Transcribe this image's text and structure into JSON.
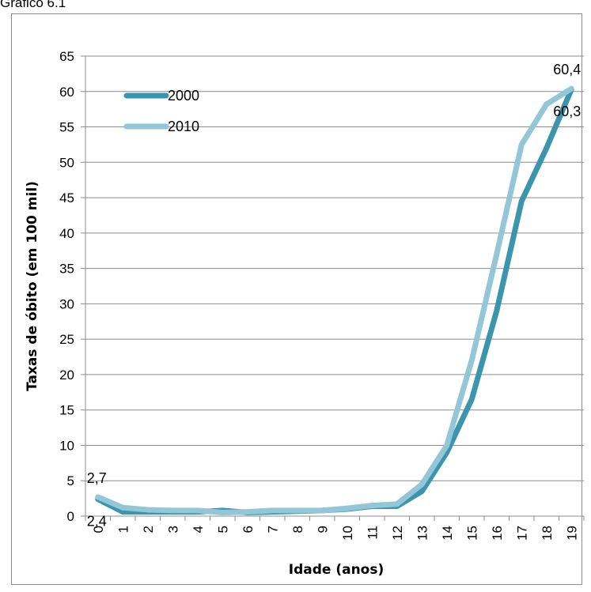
{
  "caption": "Gráfico 6.1",
  "chart_data": {
    "type": "line",
    "xlabel": "Idade (anos)",
    "ylabel": "Taxas de óbito (em 100 mil)",
    "ylim": [
      0,
      65
    ],
    "yticks": [
      0,
      5,
      10,
      15,
      20,
      25,
      30,
      35,
      40,
      45,
      50,
      55,
      60,
      65
    ],
    "categories": [
      "0",
      "1",
      "2",
      "3",
      "4",
      "5",
      "6",
      "7",
      "8",
      "9",
      "10",
      "11",
      "12",
      "13",
      "14",
      "15",
      "16",
      "17",
      "18",
      "19"
    ],
    "grid": true,
    "legend_position": "top-left",
    "series": [
      {
        "name": "2000",
        "color": "#3a95ad",
        "values": [
          2.4,
          0.6,
          0.6,
          0.6,
          0.6,
          0.8,
          0.5,
          0.6,
          0.7,
          0.8,
          1.0,
          1.4,
          1.4,
          3.5,
          9.0,
          16.5,
          29.0,
          44.5,
          52.0,
          60.3
        ]
      },
      {
        "name": "2010",
        "color": "#93c6d6",
        "values": [
          2.7,
          1.2,
          0.9,
          0.8,
          0.8,
          0.5,
          0.6,
          0.8,
          0.8,
          0.8,
          1.1,
          1.5,
          1.7,
          4.5,
          10.0,
          22.0,
          37.0,
          52.5,
          58.2,
          60.4
        ]
      }
    ],
    "annotations": [
      {
        "text": "2,7",
        "series": 1,
        "index": 0,
        "position": "above"
      },
      {
        "text": "2,4",
        "series": 0,
        "index": 0,
        "position": "below"
      },
      {
        "text": "60,4",
        "series": 1,
        "index": 19,
        "position": "above"
      },
      {
        "text": "60,3",
        "series": 0,
        "index": 19,
        "position": "below"
      }
    ]
  }
}
